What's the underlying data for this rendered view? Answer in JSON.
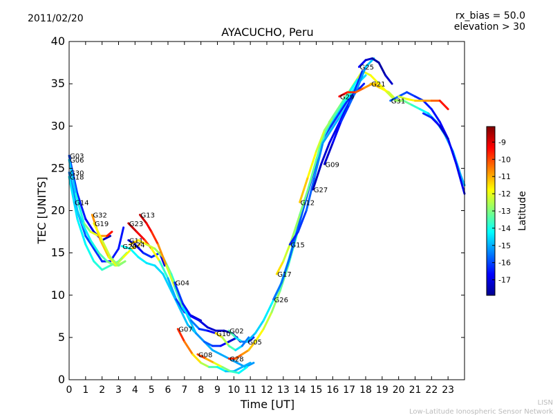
{
  "header": {
    "date": "2011/02/20",
    "params_line1": "rx_bias = 50.0",
    "params_line2": "elevation > 30"
  },
  "footer": {
    "line1": "LISN",
    "line2": "Low-Latitude Ionospheric Sensor Network"
  },
  "colorbar": {
    "label": "Latitude",
    "ticks": [
      "-9",
      "-10",
      "-11",
      "-12",
      "-13",
      "-14",
      "-15",
      "-16",
      "-17"
    ],
    "tick_values": [
      -9,
      -10,
      -11,
      -12,
      -13,
      -14,
      -15,
      -16,
      -17
    ],
    "range": [
      -17.9,
      -8.1
    ],
    "colors": [
      "#00008f",
      "#0000ff",
      "#007fff",
      "#00ffff",
      "#7fff7f",
      "#ffff00",
      "#ff7f00",
      "#ff0000",
      "#7f0000"
    ]
  },
  "chart_data": {
    "type": "line",
    "title": "AYACUCHO, Peru",
    "xlabel": "Time [UT]",
    "ylabel": "TEC [UNITS]",
    "xlim": [
      0,
      24
    ],
    "ylim": [
      0,
      40
    ],
    "xticks": [
      0,
      1,
      2,
      3,
      4,
      5,
      6,
      7,
      8,
      9,
      10,
      11,
      12,
      13,
      14,
      15,
      16,
      17,
      18,
      19,
      20,
      21,
      22,
      23
    ],
    "yticks": [
      0,
      5,
      10,
      15,
      20,
      25,
      30,
      35,
      40
    ],
    "color_by": "Latitude",
    "series": [
      {
        "name": "G03",
        "x": [
          0,
          0.5,
          1,
          1.5,
          2,
          2.5
        ],
        "y": [
          26.5,
          22,
          19,
          17.5,
          16.5,
          17
        ],
        "lat": [
          -15.8,
          -16.2,
          -16.6,
          -17.0,
          -17.3,
          -17.5
        ]
      },
      {
        "name": "G06",
        "x": [
          0,
          0.4,
          0.9,
          1.3,
          1.8,
          2.3,
          2.6
        ],
        "y": [
          26,
          22,
          18.5,
          17.5,
          17,
          17,
          17.5
        ],
        "lat": [
          -15.0,
          -14.5,
          -13.5,
          -12.5,
          -11.5,
          -10.0,
          -9.0
        ]
      },
      {
        "name": "G30",
        "x": [
          0,
          0.5,
          1,
          1.5,
          2,
          2.5,
          3,
          3.3
        ],
        "y": [
          24.5,
          20,
          17,
          15.5,
          14,
          14,
          15.5,
          18
        ],
        "lat": [
          -15.2,
          -15.6,
          -15.9,
          -16.1,
          -16.3,
          -16.4,
          -16.5,
          -16.5
        ]
      },
      {
        "name": "G18",
        "x": [
          0,
          0.5,
          1,
          1.5,
          2,
          2.5,
          3,
          3.5
        ],
        "y": [
          24,
          19,
          16,
          14,
          13,
          13.5,
          14,
          15
        ],
        "lat": [
          -14.5,
          -14.4,
          -14.2,
          -14.0,
          -13.8,
          -13.6,
          -13.4,
          -13.2
        ]
      },
      {
        "name": "G14",
        "x": [
          0.3,
          0.8,
          1.3,
          1.8,
          2.3,
          2.8,
          3.3,
          3.8,
          4.3
        ],
        "y": [
          21,
          18.5,
          16.5,
          15,
          14,
          13.5,
          14.5,
          15.5,
          16
        ],
        "lat": [
          -14.8,
          -14.6,
          -14.2,
          -13.8,
          -13.2,
          -12.8,
          -12.2,
          -11.5,
          -11.0
        ]
      },
      {
        "name": "G32",
        "x": [
          1.4,
          1.9,
          2.4,
          2.9,
          3.4
        ],
        "y": [
          19.5,
          16.5,
          14.5,
          13.5,
          14
        ],
        "lat": [
          -10.5,
          -11.0,
          -11.5,
          -12.0,
          -12.5
        ]
      },
      {
        "name": "G19",
        "x": [
          1.5,
          2,
          2.5,
          3,
          3.4
        ],
        "y": [
          18.5,
          16.5,
          14.5,
          13.5,
          14
        ],
        "lat": [
          -11.5,
          -12.0,
          -12.5,
          -12.8,
          -13.0
        ]
      },
      {
        "name": "G20",
        "x": [
          3.2,
          3.7,
          4.2,
          4.7,
          5.2,
          5.7,
          6.2,
          6.7,
          7.2,
          7.7,
          8.2,
          8.7,
          9.2,
          9.7,
          10.2,
          10.7,
          11.2
        ],
        "y": [
          15.8,
          15.5,
          14.5,
          13.8,
          13.5,
          12.5,
          10.5,
          8.5,
          6.5,
          5.5,
          4.5,
          3.5,
          3,
          2.5,
          2,
          1.5,
          2
        ],
        "lat": [
          -14.0,
          -14.2,
          -14.3,
          -14.4,
          -14.5,
          -14.6,
          -14.7,
          -14.8,
          -14.8,
          -14.9,
          -14.9,
          -15.0,
          -15.0,
          -15.1,
          -15.1,
          -15.2,
          -15.2
        ]
      },
      {
        "name": "G11",
        "x": [
          3.6,
          4,
          4.5,
          5,
          5.5,
          5.8
        ],
        "y": [
          16.5,
          16,
          15,
          14.5,
          15,
          13.5
        ],
        "lat": [
          -17.2,
          -17.0,
          -16.5,
          -16.0,
          -16.5,
          -17.5
        ]
      },
      {
        "name": "G23",
        "x": [
          3.6,
          4.1,
          4.6,
          5,
          5.5,
          6,
          6.5,
          7,
          7.5,
          8
        ],
        "y": [
          18.5,
          17.5,
          16.5,
          15.5,
          14,
          12,
          9.5,
          8,
          7.5,
          7
        ],
        "lat": [
          -8.5,
          -9.0,
          -9.5,
          -10.5,
          -13.0,
          -14.5,
          -15.5,
          -16.5,
          -17.0,
          -17.5
        ]
      },
      {
        "name": "G24",
        "x": [
          3.7,
          4.2,
          4.7,
          5.2,
          5.7,
          6.2,
          6.7,
          7.2,
          7.7,
          8.2,
          8.7,
          9.2,
          9.7,
          10.2
        ],
        "y": [
          16,
          16.5,
          16,
          15.5,
          14.5,
          12.5,
          10,
          7.5,
          5.5,
          4.5,
          4,
          4,
          4.5,
          5
        ],
        "lat": [
          -11.0,
          -11.5,
          -12.0,
          -12.5,
          -13.0,
          -13.5,
          -14.0,
          -14.5,
          -15.0,
          -15.5,
          -16.0,
          -16.5,
          -17.0,
          -17.5
        ]
      },
      {
        "name": "G13",
        "x": [
          4.3,
          4.7,
          5,
          5.4,
          5.9,
          6.4,
          6.9,
          7.4,
          7.9,
          8.4,
          8.9
        ],
        "y": [
          19.5,
          18.5,
          17.5,
          16,
          13.5,
          11,
          8.5,
          7,
          6,
          5.8,
          5.5
        ],
        "lat": [
          -8.5,
          -9.0,
          -9.5,
          -10.0,
          -11.5,
          -13.0,
          -14.0,
          -15.0,
          -16.0,
          -16.5,
          -17.0
        ]
      },
      {
        "name": "G04",
        "x": [
          6.4,
          6.9,
          7.4,
          7.9,
          8.4,
          8.9,
          9.4,
          9.9,
          10.4
        ],
        "y": [
          11.5,
          9,
          7.5,
          7,
          6.2,
          5.8,
          5.8,
          5.5,
          4.5
        ],
        "lat": [
          -16.0,
          -16.3,
          -16.6,
          -16.9,
          -17.1,
          -17.3,
          -17.4,
          -17.5,
          -17.6
        ]
      },
      {
        "name": "G07",
        "x": [
          6.6,
          7,
          7.5,
          8,
          8.5,
          9,
          9.5,
          10,
          10.5,
          11
        ],
        "y": [
          6,
          4.5,
          3,
          2,
          1.5,
          1.5,
          1,
          1,
          1.5,
          2
        ],
        "lat": [
          -9.5,
          -10.0,
          -11.0,
          -12.0,
          -13.0,
          -14.0,
          -14.5,
          -15.0,
          -15.0,
          -15.0
        ]
      },
      {
        "name": "G08",
        "x": [
          7.8,
          8.3,
          8.8,
          9.3,
          9.8,
          10.3,
          10.8
        ],
        "y": [
          3,
          2.5,
          2,
          1.5,
          1,
          0.8,
          1.5
        ],
        "lat": [
          -9.5,
          -10.5,
          -11.5,
          -12.5,
          -13.5,
          -14.0,
          -14.5
        ]
      },
      {
        "name": "G10",
        "x": [
          8.9,
          9.3,
          9.7,
          10.1,
          10.5,
          10.9
        ],
        "y": [
          5.5,
          5,
          4,
          3.5,
          4,
          5
        ],
        "lat": [
          -11.0,
          -12.0,
          -13.0,
          -14.0,
          -15.0,
          -16.0
        ]
      },
      {
        "name": "G02",
        "x": [
          9.7,
          10.1,
          10.5,
          10.9,
          11.2
        ],
        "y": [
          5.8,
          5,
          4.5,
          4.5,
          5
        ],
        "lat": [
          -13.0,
          -14.0,
          -15.0,
          -16.0,
          -16.5
        ]
      },
      {
        "name": "G28",
        "x": [
          9.7,
          10.1,
          10.5,
          10.9,
          11.3,
          11.8,
          12.3,
          12.8,
          13.3,
          13.8,
          14.3,
          14.8,
          15.3,
          15.8,
          16.3,
          16.8,
          17.3
        ],
        "y": [
          2.5,
          2.5,
          3,
          3.5,
          4.5,
          6,
          8,
          10.5,
          13.5,
          17,
          21,
          24.5,
          28,
          30,
          31.5,
          33,
          34
        ],
        "lat": [
          -9.5,
          -10.0,
          -10.5,
          -11.0,
          -11.5,
          -12.0,
          -12.5,
          -13.0,
          -13.5,
          -13.8,
          -14.0,
          -14.2,
          -14.3,
          -14.4,
          -14.5,
          -14.6,
          -14.7
        ]
      },
      {
        "name": "G05",
        "x": [
          10.8,
          11.3,
          11.8,
          12.3,
          12.8,
          13.3,
          13.8,
          14.3,
          14.8,
          15.3,
          15.8,
          16.3,
          16.8,
          17.3,
          17.8,
          18.3,
          18.8,
          19.3
        ],
        "y": [
          4.5,
          5.5,
          7,
          9,
          11,
          14,
          17.5,
          21,
          24.5,
          28,
          30.5,
          32,
          33.5,
          35,
          36.5,
          36,
          35,
          34
        ],
        "lat": [
          -15.0,
          -14.8,
          -14.5,
          -14.3,
          -14.1,
          -13.9,
          -13.7,
          -13.5,
          -13.3,
          -13.1,
          -12.9,
          -12.7,
          -12.5,
          -12.3,
          -12.1,
          -11.9,
          -11.7,
          -11.5
        ]
      },
      {
        "name": "G26",
        "x": [
          12.4,
          12.9,
          13.4,
          13.9,
          14.4,
          14.9,
          15.4,
          15.9,
          16.4,
          16.9,
          17.4,
          17.9
        ],
        "y": [
          9.5,
          11.5,
          14.5,
          18,
          21.5,
          25,
          28.5,
          30,
          31.5,
          33,
          34,
          35
        ],
        "lat": [
          -15.5,
          -15.6,
          -15.7,
          -15.8,
          -15.9,
          -16.0,
          -16.0,
          -16.1,
          -16.2,
          -16.3,
          -16.4,
          -16.5
        ]
      },
      {
        "name": "G17",
        "x": [
          12.6,
          13,
          13.5,
          14,
          14.5,
          15,
          15.5,
          16,
          16.5,
          17,
          17.5,
          18
        ],
        "y": [
          12.5,
          14,
          16.5,
          19.5,
          22.5,
          26,
          29,
          31,
          32.5,
          33.5,
          35,
          36
        ],
        "lat": [
          -11.0,
          -12.0,
          -12.5,
          -13.0,
          -13.2,
          -13.4,
          -13.6,
          -13.8,
          -14.0,
          -14.2,
          -14.4,
          -14.6
        ]
      },
      {
        "name": "G15",
        "x": [
          13.4,
          13.9,
          14.4,
          14.9,
          15.4,
          15.9,
          16.4,
          16.9,
          17.4
        ],
        "y": [
          16,
          17.5,
          20,
          24,
          28,
          29.5,
          31,
          32.5,
          34
        ],
        "lat": [
          -16.5,
          -16.3,
          -16.0,
          -15.5,
          -15.2,
          -15.0,
          -14.8,
          -14.6,
          -14.5
        ]
      },
      {
        "name": "G12",
        "x": [
          14,
          14.5,
          15,
          15.5,
          16,
          16.5,
          17,
          17.5
        ],
        "y": [
          21,
          24,
          27,
          29.5,
          31,
          32.5,
          34,
          35.5
        ],
        "lat": [
          -11.0,
          -11.5,
          -12.0,
          -12.5,
          -13.0,
          -13.5,
          -14.0,
          -14.5
        ]
      },
      {
        "name": "G27",
        "x": [
          14.8,
          15.3,
          15.8,
          16.3,
          16.8,
          17.3,
          17.8
        ],
        "y": [
          22.5,
          25.5,
          28,
          30,
          32,
          34,
          36.5
        ],
        "lat": [
          -17.5,
          -17.3,
          -17.0,
          -16.8,
          -16.6,
          -16.4,
          -16.2
        ]
      },
      {
        "name": "G09",
        "x": [
          15.5,
          16,
          16.5,
          17,
          17.5,
          18,
          18.5
        ],
        "y": [
          25.5,
          28,
          30.5,
          32.5,
          34.5,
          37,
          38
        ],
        "lat": [
          -17.5,
          -17.0,
          -16.5,
          -16.0,
          -15.5,
          -15.0,
          -14.5
        ]
      },
      {
        "name": "G29",
        "x": [
          16.4,
          16.9,
          17.4,
          17.9,
          18.4,
          18.9,
          19.4,
          19.9
        ],
        "y": [
          33.5,
          34,
          34,
          34.5,
          35,
          34.5,
          34,
          33
        ],
        "lat": [
          -9.0,
          -9.5,
          -10.0,
          -10.5,
          -11.0,
          -11.5,
          -12.0,
          -12.5
        ]
      },
      {
        "name": "G25",
        "x": [
          17.6,
          18,
          18.4,
          18.8,
          19.2,
          19.6
        ],
        "y": [
          37,
          37.8,
          38,
          37.5,
          36,
          35
        ],
        "lat": [
          -16.5,
          -17.0,
          -17.5,
          -17.8,
          -17.5,
          -17.0
        ]
      },
      {
        "name": "G21",
        "x": [
          18.3,
          18.8,
          19.3,
          19.8,
          20.3,
          20.8,
          21.3,
          21.8,
          22.3,
          22.8,
          23.3,
          23.8,
          24
        ],
        "y": [
          35,
          35,
          34,
          33,
          33,
          32.5,
          32,
          31.5,
          30.5,
          29,
          27,
          24,
          23
        ],
        "lat": [
          -11.0,
          -11.5,
          -12.0,
          -12.5,
          -13.0,
          -13.5,
          -14.0,
          -14.5,
          -15.0,
          -15.0,
          -15.0,
          -15.0,
          -15.0
        ]
      },
      {
        "name": "G31",
        "x": [
          19.5,
          20,
          20.5,
          21,
          21.5,
          22,
          22.5,
          23,
          23.5,
          24
        ],
        "y": [
          33,
          33.5,
          34,
          33.5,
          33,
          32,
          30.5,
          28.5,
          25.5,
          22
        ],
        "lat": [
          -15.5,
          -15.8,
          -16.0,
          -16.2,
          -16.4,
          -16.5,
          -16.6,
          -16.7,
          -16.8,
          -16.9
        ]
      },
      {
        "name": "",
        "x": [
          20,
          20.5,
          21,
          21.5,
          22,
          22.5,
          23
        ],
        "y": [
          33.5,
          33.2,
          33,
          33,
          33,
          33,
          32
        ],
        "lat": [
          -12.5,
          -12.0,
          -11.5,
          -11.0,
          -10.5,
          -10.0,
          -9.0
        ]
      },
      {
        "name": "",
        "x": [
          21.5,
          22,
          22.5,
          23
        ],
        "y": [
          31.5,
          31,
          30,
          28.5
        ],
        "lat": [
          -16.0,
          -16.5,
          -17.0,
          -17.5
        ]
      }
    ]
  }
}
